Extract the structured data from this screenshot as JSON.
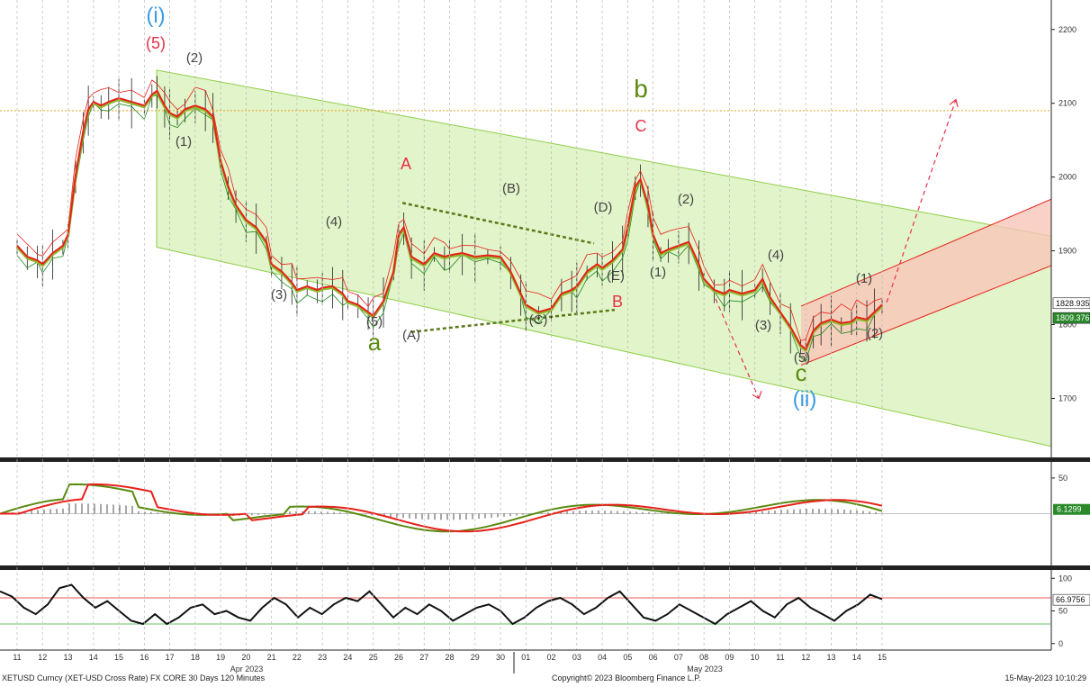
{
  "footer": {
    "left": "XETUSD Curncy (XET-USD Cross Rate) FX CORE 30 Days 120 Minutes",
    "center": "Copyright© 2023 Bloomberg Finance L.P.",
    "right": "15-May-2023 10:10:29"
  },
  "colors": {
    "price": "#e8201a",
    "green": "#1e8a1e",
    "channel_fill": "#d8f0b8",
    "channel_line": "#8fce4a",
    "red_channel_fill": "#f7c6b8",
    "red_channel_line": "#e8201a",
    "level_line": "#e8a020",
    "wave_red": "#e8304a",
    "wave_blue": "#3c9ce0",
    "wave_green": "#5a8a10",
    "wave_gray": "#444444"
  },
  "chart_data": [
    {
      "panel": "price",
      "type": "line",
      "x_dates": [
        "11",
        "12",
        "13",
        "14",
        "15",
        "16",
        "17",
        "18",
        "19",
        "20",
        "21",
        "22",
        "23",
        "24",
        "25",
        "26",
        "27",
        "28",
        "29",
        "30",
        "01",
        "02",
        "03",
        "04",
        "05",
        "06",
        "07",
        "08",
        "09",
        "10",
        "11",
        "12",
        "13",
        "14",
        "15"
      ],
      "x_month_labels": [
        "Apr 2023",
        "May 2023"
      ],
      "ylim": [
        1620,
        2240
      ],
      "yticks": [
        "1700",
        "1800",
        "1900",
        "2000",
        "2100",
        "2200"
      ],
      "last_price_labels": [
        "1828.935",
        "1809.376"
      ],
      "price_path": [
        [
          "11",
          1905
        ],
        [
          "11.4",
          1890
        ],
        [
          "11.8",
          1885
        ],
        [
          "12",
          1880
        ],
        [
          "12.4",
          1895
        ],
        [
          "12.8",
          1905
        ],
        [
          "13",
          1920
        ],
        [
          "13.3",
          2000
        ],
        [
          "13.6",
          2060
        ],
        [
          "13.8",
          2090
        ],
        [
          "14",
          2100
        ],
        [
          "14.3",
          2095
        ],
        [
          "14.6",
          2100
        ],
        [
          "15",
          2105
        ],
        [
          "15.5",
          2100
        ],
        [
          "16",
          2095
        ],
        [
          "16.3",
          2110
        ],
        [
          "16.5",
          2115
        ],
        [
          "16.8",
          2095
        ],
        [
          "17",
          2085
        ],
        [
          "17.3",
          2080
        ],
        [
          "17.6",
          2090
        ],
        [
          "18",
          2095
        ],
        [
          "18.4",
          2090
        ],
        [
          "18.7",
          2080
        ],
        [
          "19",
          2020
        ],
        [
          "19.3",
          1985
        ],
        [
          "19.6",
          1960
        ],
        [
          "20",
          1940
        ],
        [
          "20.4",
          1930
        ],
        [
          "20.8",
          1910
        ],
        [
          "21",
          1880
        ],
        [
          "21.4",
          1870
        ],
        [
          "21.8",
          1855
        ],
        [
          "22",
          1845
        ],
        [
          "22.4",
          1850
        ],
        [
          "22.8",
          1845
        ],
        [
          "23",
          1848
        ],
        [
          "23.4",
          1850
        ],
        [
          "23.8",
          1840
        ],
        [
          "24",
          1830
        ],
        [
          "24.4",
          1825
        ],
        [
          "24.8",
          1815
        ],
        [
          "25",
          1810
        ],
        [
          "25.4",
          1830
        ],
        [
          "25.8",
          1870
        ],
        [
          "26",
          1920
        ],
        [
          "26.2",
          1930
        ],
        [
          "26.5",
          1890
        ],
        [
          "27",
          1880
        ],
        [
          "27.4",
          1895
        ],
        [
          "27.8",
          1890
        ],
        [
          "28",
          1892
        ],
        [
          "28.5",
          1895
        ],
        [
          "29",
          1890
        ],
        [
          "29.5",
          1892
        ],
        [
          "30",
          1890
        ],
        [
          "30.4",
          1870
        ],
        [
          "30.8",
          1840
        ],
        [
          "01",
          1825
        ],
        [
          "01.5",
          1815
        ],
        [
          "02",
          1820
        ],
        [
          "02.4",
          1840
        ],
        [
          "02.8",
          1845
        ],
        [
          "03",
          1850
        ],
        [
          "03.4",
          1870
        ],
        [
          "03.8",
          1880
        ],
        [
          "04",
          1875
        ],
        [
          "04.4",
          1885
        ],
        [
          "04.8",
          1900
        ],
        [
          "05",
          1930
        ],
        [
          "05.3",
          1985
        ],
        [
          "05.5",
          1995
        ],
        [
          "05.8",
          1960
        ],
        [
          "06",
          1920
        ],
        [
          "06.3",
          1895
        ],
        [
          "06.6",
          1900
        ],
        [
          "07",
          1905
        ],
        [
          "07.4",
          1910
        ],
        [
          "07.8",
          1880
        ],
        [
          "08",
          1860
        ],
        [
          "08.4",
          1845
        ],
        [
          "08.8",
          1840
        ],
        [
          "09",
          1845
        ],
        [
          "09.5",
          1840
        ],
        [
          "10",
          1845
        ],
        [
          "10.3",
          1860
        ],
        [
          "10.6",
          1835
        ],
        [
          "11",
          1815
        ],
        [
          "11.4",
          1795
        ],
        [
          "11.8",
          1770
        ],
        [
          "12",
          1765
        ],
        [
          "12.3",
          1790
        ],
        [
          "12.6",
          1800
        ],
        [
          "13",
          1805
        ],
        [
          "13.4",
          1800
        ],
        [
          "13.8",
          1802
        ],
        [
          "14",
          1808
        ],
        [
          "14.4",
          1805
        ],
        [
          "14.7",
          1815
        ],
        [
          "15",
          1825
        ]
      ],
      "levels": [
        2090
      ],
      "wave_labels": [
        {
          "text": "(i)",
          "color": "blue"
        },
        {
          "text": "(5)",
          "color": "red"
        },
        {
          "text": "(2)",
          "color": "gray"
        },
        {
          "text": "(1)",
          "color": "gray"
        },
        {
          "text": "(3)",
          "color": "gray"
        },
        {
          "text": "(4)",
          "color": "gray"
        },
        {
          "text": "(5)",
          "color": "gray"
        },
        {
          "text": "a",
          "color": "green"
        },
        {
          "text": "A",
          "color": "red"
        },
        {
          "text": "(A)",
          "color": "gray"
        },
        {
          "text": "(B)",
          "color": "gray"
        },
        {
          "text": "(C)",
          "color": "gray"
        },
        {
          "text": "(D)",
          "color": "gray"
        },
        {
          "text": "(E)",
          "color": "gray"
        },
        {
          "text": "B",
          "color": "red"
        },
        {
          "text": "b",
          "color": "green"
        },
        {
          "text": "C",
          "color": "red"
        },
        {
          "text": "(1)",
          "color": "gray"
        },
        {
          "text": "(2)",
          "color": "gray"
        },
        {
          "text": "(3)",
          "color": "gray"
        },
        {
          "text": "(4)",
          "color": "gray"
        },
        {
          "text": "(5)",
          "color": "gray"
        },
        {
          "text": "c",
          "color": "green"
        },
        {
          "text": "(ii)",
          "color": "blue"
        },
        {
          "text": "(1)",
          "color": "gray"
        },
        {
          "text": "(2)",
          "color": "gray"
        }
      ]
    },
    {
      "panel": "macd",
      "type": "line",
      "ylim": [
        -70,
        70
      ],
      "yticks": [
        "50"
      ],
      "last_value_label": "6.1299"
    },
    {
      "panel": "rsi",
      "type": "line",
      "ylim": [
        -10,
        110
      ],
      "yticks": [
        "100",
        "50",
        "0"
      ],
      "last_value_label": "66.9756",
      "levels": [
        70,
        30
      ],
      "values": [
        80,
        72,
        55,
        45,
        60,
        85,
        90,
        70,
        55,
        65,
        50,
        35,
        30,
        45,
        30,
        40,
        55,
        60,
        45,
        50,
        40,
        35,
        55,
        70,
        60,
        40,
        55,
        45,
        60,
        70,
        65,
        80,
        60,
        40,
        55,
        45,
        60,
        50,
        35,
        45,
        55,
        60,
        50,
        30,
        40,
        55,
        65,
        70,
        60,
        45,
        55,
        70,
        80,
        60,
        40,
        35,
        45,
        60,
        50,
        40,
        30,
        45,
        55,
        65,
        50,
        40,
        60,
        70,
        55,
        45,
        35,
        50,
        60,
        75,
        68
      ]
    }
  ]
}
